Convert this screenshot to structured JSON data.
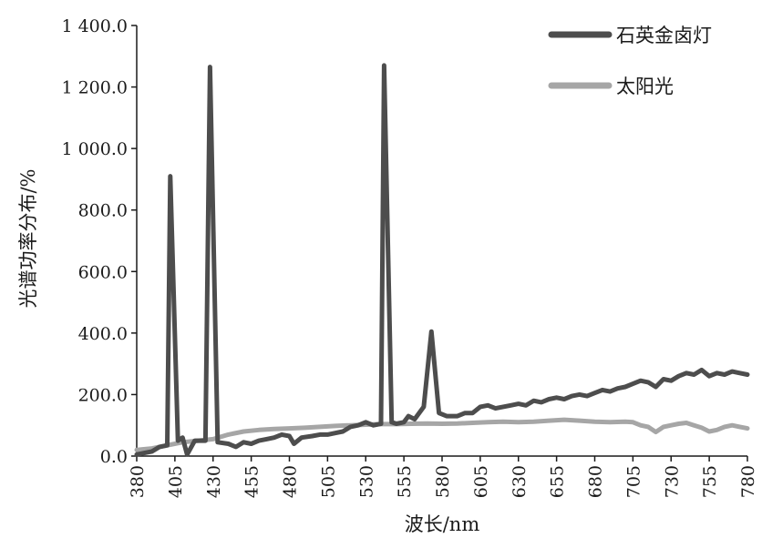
{
  "chart_data": {
    "type": "line",
    "title": "",
    "xlabel": "波长/nm",
    "ylabel": "光谱功率分布/%",
    "xlim": [
      380,
      780
    ],
    "ylim": [
      0,
      1400
    ],
    "x_ticks": [
      380,
      405,
      430,
      455,
      480,
      505,
      530,
      555,
      580,
      605,
      630,
      655,
      680,
      705,
      730,
      755,
      780
    ],
    "y_ticks": [
      0,
      200,
      400,
      600,
      800,
      1000,
      1200,
      1400
    ],
    "y_tick_labels": [
      "0.0",
      "200.0",
      "400.0",
      "600.0",
      "800.0",
      "1 000.0",
      "1 200.0",
      "1 400.0"
    ],
    "x_tick_labels": [
      "380",
      "405",
      "430",
      "455",
      "480",
      "505",
      "530",
      "555",
      "580",
      "605",
      "630",
      "655",
      "680",
      "705",
      "730",
      "755",
      "780"
    ],
    "grid": false,
    "legend_position": "top-right",
    "series": [
      {
        "name": "石英金卤灯",
        "color": "#4d4d4d",
        "points": [
          [
            380,
            5
          ],
          [
            385,
            10
          ],
          [
            390,
            15
          ],
          [
            395,
            30
          ],
          [
            400,
            35
          ],
          [
            402,
            910
          ],
          [
            407,
            50
          ],
          [
            410,
            60
          ],
          [
            413,
            5
          ],
          [
            418,
            50
          ],
          [
            425,
            50
          ],
          [
            428,
            1265
          ],
          [
            433,
            45
          ],
          [
            440,
            40
          ],
          [
            445,
            30
          ],
          [
            450,
            45
          ],
          [
            455,
            40
          ],
          [
            460,
            50
          ],
          [
            465,
            55
          ],
          [
            470,
            60
          ],
          [
            475,
            70
          ],
          [
            480,
            65
          ],
          [
            483,
            40
          ],
          [
            488,
            60
          ],
          [
            495,
            65
          ],
          [
            500,
            70
          ],
          [
            505,
            70
          ],
          [
            510,
            75
          ],
          [
            515,
            80
          ],
          [
            520,
            95
          ],
          [
            525,
            100
          ],
          [
            530,
            110
          ],
          [
            535,
            100
          ],
          [
            540,
            105
          ],
          [
            542,
            1270
          ],
          [
            547,
            110
          ],
          [
            550,
            105
          ],
          [
            555,
            110
          ],
          [
            558,
            130
          ],
          [
            562,
            120
          ],
          [
            568,
            160
          ],
          [
            573,
            405
          ],
          [
            578,
            140
          ],
          [
            583,
            130
          ],
          [
            590,
            130
          ],
          [
            595,
            140
          ],
          [
            600,
            140
          ],
          [
            605,
            160
          ],
          [
            610,
            165
          ],
          [
            615,
            155
          ],
          [
            620,
            160
          ],
          [
            625,
            165
          ],
          [
            630,
            170
          ],
          [
            635,
            165
          ],
          [
            640,
            180
          ],
          [
            645,
            175
          ],
          [
            650,
            185
          ],
          [
            655,
            190
          ],
          [
            660,
            185
          ],
          [
            665,
            195
          ],
          [
            670,
            200
          ],
          [
            675,
            195
          ],
          [
            680,
            205
          ],
          [
            685,
            215
          ],
          [
            690,
            210
          ],
          [
            695,
            220
          ],
          [
            700,
            225
          ],
          [
            705,
            235
          ],
          [
            710,
            245
          ],
          [
            715,
            240
          ],
          [
            720,
            225
          ],
          [
            725,
            250
          ],
          [
            730,
            245
          ],
          [
            735,
            260
          ],
          [
            740,
            270
          ],
          [
            745,
            265
          ],
          [
            750,
            280
          ],
          [
            755,
            260
          ],
          [
            760,
            270
          ],
          [
            765,
            265
          ],
          [
            770,
            275
          ],
          [
            775,
            270
          ],
          [
            780,
            265
          ]
        ]
      },
      {
        "name": "太阳光",
        "color": "#a6a6a6",
        "points": [
          [
            380,
            20
          ],
          [
            390,
            25
          ],
          [
            400,
            35
          ],
          [
            410,
            45
          ],
          [
            420,
            50
          ],
          [
            430,
            55
          ],
          [
            440,
            70
          ],
          [
            450,
            80
          ],
          [
            460,
            85
          ],
          [
            470,
            88
          ],
          [
            480,
            90
          ],
          [
            490,
            92
          ],
          [
            500,
            95
          ],
          [
            510,
            98
          ],
          [
            520,
            100
          ],
          [
            530,
            102
          ],
          [
            540,
            104
          ],
          [
            550,
            104
          ],
          [
            560,
            105
          ],
          [
            570,
            106
          ],
          [
            580,
            105
          ],
          [
            590,
            106
          ],
          [
            600,
            108
          ],
          [
            610,
            110
          ],
          [
            620,
            112
          ],
          [
            630,
            110
          ],
          [
            640,
            112
          ],
          [
            650,
            115
          ],
          [
            660,
            118
          ],
          [
            670,
            115
          ],
          [
            680,
            112
          ],
          [
            690,
            110
          ],
          [
            700,
            112
          ],
          [
            705,
            110
          ],
          [
            710,
            100
          ],
          [
            715,
            95
          ],
          [
            720,
            78
          ],
          [
            725,
            95
          ],
          [
            730,
            100
          ],
          [
            735,
            105
          ],
          [
            740,
            108
          ],
          [
            745,
            100
          ],
          [
            750,
            92
          ],
          [
            755,
            80
          ],
          [
            760,
            85
          ],
          [
            765,
            95
          ],
          [
            770,
            100
          ],
          [
            775,
            95
          ],
          [
            780,
            90
          ]
        ]
      }
    ]
  }
}
